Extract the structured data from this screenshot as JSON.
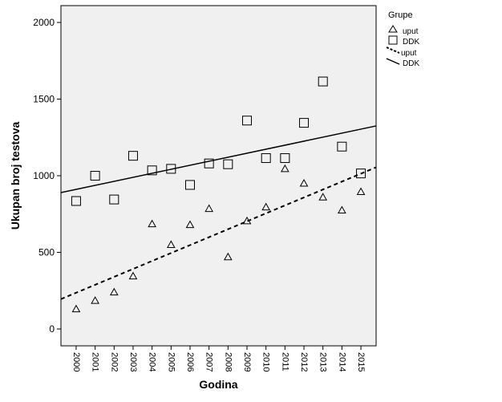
{
  "chart_data": {
    "type": "scatter",
    "title": "",
    "xlabel": "Godina",
    "ylabel": "Ukupan broj testova",
    "x": [
      2000,
      2001,
      2002,
      2003,
      2004,
      2005,
      2006,
      2007,
      2008,
      2009,
      2010,
      2011,
      2012,
      2013,
      2014,
      2015
    ],
    "xlim": [
      1999.2,
      2015.8
    ],
    "ylim": [
      -110,
      2110
    ],
    "yticks": [
      0,
      500,
      1000,
      1500,
      2000
    ],
    "grid": false,
    "legend": {
      "title": "Grupe",
      "placement": "right",
      "entries": [
        "uput",
        "DDK",
        "uput",
        "DDK"
      ]
    },
    "series": [
      {
        "name": "uput",
        "marker": "triangle",
        "values": [
          130,
          185,
          240,
          345,
          685,
          550,
          680,
          785,
          470,
          705,
          795,
          1045,
          950,
          860,
          775,
          895
        ]
      },
      {
        "name": "DDK",
        "marker": "square",
        "values": [
          835,
          1000,
          845,
          1130,
          1035,
          1045,
          940,
          1080,
          1075,
          1360,
          1115,
          1115,
          1345,
          1615,
          1190,
          1015
        ]
      }
    ],
    "fit_lines": [
      {
        "name": "uput",
        "style": "dashed",
        "y_at_xmin": 195,
        "y_at_xmax": 1055
      },
      {
        "name": "DDK",
        "style": "solid",
        "y_at_xmin": 890,
        "y_at_xmax": 1325
      }
    ],
    "colors": {
      "plot_background": "#f0f0f0",
      "marks": "#000000"
    }
  }
}
